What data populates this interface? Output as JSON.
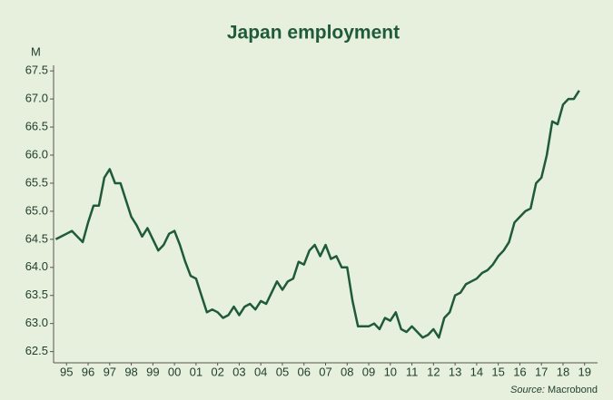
{
  "chart_data": {
    "type": "line",
    "title": "Japan employment",
    "y_label": "M",
    "source_label": "Source:",
    "source": "Macrobond",
    "color": "#1f5a3a",
    "x": [
      1995.0,
      1995.25,
      1995.5,
      1995.75,
      1996.0,
      1996.25,
      1996.5,
      1996.75,
      1997.0,
      1997.25,
      1997.5,
      1997.75,
      1998.0,
      1998.25,
      1998.5,
      1998.75,
      1999.0,
      1999.25,
      1999.5,
      1999.75,
      2000.0,
      2000.25,
      2000.5,
      2000.75,
      2001.0,
      2001.25,
      2001.5,
      2001.75,
      2002.0,
      2002.25,
      2002.5,
      2002.75,
      2003.0,
      2003.25,
      2003.5,
      2003.75,
      2004.0,
      2004.25,
      2004.5,
      2004.75,
      2005.0,
      2005.25,
      2005.5,
      2005.75,
      2006.0,
      2006.25,
      2006.5,
      2006.75,
      2007.0,
      2007.25,
      2007.5,
      2007.75,
      2008.0,
      2008.25,
      2008.5,
      2008.75,
      2009.0,
      2009.25,
      2009.5,
      2009.75,
      2010.0,
      2010.25,
      2010.5,
      2010.75,
      2011.0,
      2011.25,
      2011.5,
      2011.75,
      2012.0,
      2012.25,
      2012.5,
      2012.75,
      2013.0,
      2013.25,
      2013.5,
      2013.75,
      2014.0,
      2014.25,
      2014.5,
      2014.75,
      2015.0,
      2015.25,
      2015.5,
      2015.75,
      2016.0,
      2016.25,
      2016.5,
      2016.75,
      2017.0,
      2017.25,
      2017.5,
      2017.75,
      2018.0,
      2018.25,
      2018.5,
      2018.75,
      2019.0,
      2019.25
    ],
    "values": [
      64.5,
      64.55,
      64.6,
      64.65,
      64.55,
      64.45,
      64.8,
      65.1,
      65.1,
      65.6,
      65.75,
      65.5,
      65.5,
      65.2,
      64.9,
      64.75,
      64.55,
      64.7,
      64.5,
      64.3,
      64.4,
      64.6,
      64.65,
      64.4,
      64.1,
      63.85,
      63.8,
      63.5,
      63.2,
      63.25,
      63.2,
      63.1,
      63.15,
      63.3,
      63.15,
      63.3,
      63.35,
      63.25,
      63.4,
      63.35,
      63.55,
      63.75,
      63.6,
      63.75,
      63.8,
      64.1,
      64.05,
      64.3,
      64.4,
      64.2,
      64.4,
      64.15,
      64.2,
      64.0,
      64.0,
      63.4,
      62.95,
      62.95,
      62.95,
      63.0,
      62.9,
      63.1,
      63.05,
      63.2,
      62.9,
      62.85,
      62.95,
      62.85,
      62.75,
      62.8,
      62.9,
      62.75,
      63.1,
      63.2,
      63.5,
      63.55,
      63.7,
      63.75,
      63.8,
      63.9,
      63.95,
      64.05,
      64.2,
      64.3,
      64.45,
      64.8,
      64.9,
      65.0,
      65.05,
      65.5,
      65.6,
      66.0,
      66.6,
      66.55,
      66.9,
      67.0,
      67.0,
      67.15
    ],
    "xlim": [
      1994.9,
      2020.1
    ],
    "xticks": [
      {
        "value": 1995.5,
        "label": "95"
      },
      {
        "value": 1996.5,
        "label": "96"
      },
      {
        "value": 1997.5,
        "label": "97"
      },
      {
        "value": 1998.5,
        "label": "98"
      },
      {
        "value": 1999.5,
        "label": "99"
      },
      {
        "value": 2000.5,
        "label": "00"
      },
      {
        "value": 2001.5,
        "label": "01"
      },
      {
        "value": 2002.5,
        "label": "02"
      },
      {
        "value": 2003.5,
        "label": "03"
      },
      {
        "value": 2004.5,
        "label": "04"
      },
      {
        "value": 2005.5,
        "label": "05"
      },
      {
        "value": 2006.5,
        "label": "06"
      },
      {
        "value": 2007.5,
        "label": "07"
      },
      {
        "value": 2008.5,
        "label": "08"
      },
      {
        "value": 2009.5,
        "label": "09"
      },
      {
        "value": 2010.5,
        "label": "10"
      },
      {
        "value": 2011.5,
        "label": "11"
      },
      {
        "value": 2012.5,
        "label": "12"
      },
      {
        "value": 2013.5,
        "label": "13"
      },
      {
        "value": 2014.5,
        "label": "14"
      },
      {
        "value": 2015.5,
        "label": "15"
      },
      {
        "value": 2016.5,
        "label": "16"
      },
      {
        "value": 2017.5,
        "label": "17"
      },
      {
        "value": 2018.5,
        "label": "18"
      },
      {
        "value": 2019.5,
        "label": "19"
      }
    ],
    "ylim": [
      62.3,
      67.6
    ],
    "yticks": [
      62.5,
      {
        "value": 63,
        "label": "63.0"
      },
      63.5,
      {
        "value": 64,
        "label": "64.0"
      },
      64.5,
      {
        "value": 65,
        "label": "65.0"
      },
      65.5,
      {
        "value": 66,
        "label": "66.0"
      },
      66.5,
      {
        "value": 67,
        "label": "67.0"
      },
      67.5
    ],
    "grid": false
  }
}
